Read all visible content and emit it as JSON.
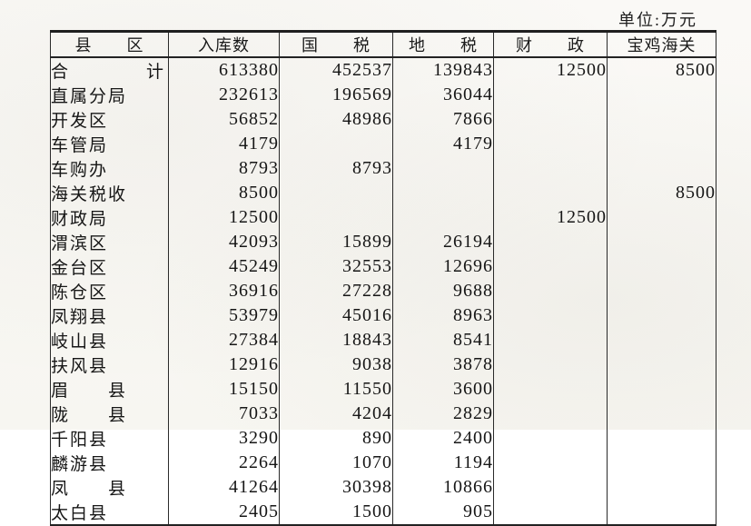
{
  "unit_label": "单位:万元",
  "colors": {
    "paper": "#f9f8f4",
    "ink": "#1b1b1b",
    "rule_line": "#2a2a2a"
  },
  "table": {
    "columns": [
      "县　　区",
      "入库数",
      "国　　税",
      "地　　税",
      "财　　政",
      "宝鸡海关"
    ],
    "rows": [
      [
        "合　　　　计",
        "613380",
        "452537",
        "139843",
        "12500",
        "8500"
      ],
      [
        "直属分局",
        "232613",
        "196569",
        "36044",
        "",
        ""
      ],
      [
        "开发区",
        "56852",
        "48986",
        "7866",
        "",
        ""
      ],
      [
        "车管局",
        "4179",
        "",
        "4179",
        "",
        ""
      ],
      [
        "车购办",
        "8793",
        "8793",
        "",
        "",
        ""
      ],
      [
        "海关税收",
        "8500",
        "",
        "",
        "",
        "8500"
      ],
      [
        "财政局",
        "12500",
        "",
        "",
        "12500",
        ""
      ],
      [
        "渭滨区",
        "42093",
        "15899",
        "26194",
        "",
        ""
      ],
      [
        "金台区",
        "45249",
        "32553",
        "12696",
        "",
        ""
      ],
      [
        "陈仓区",
        "36916",
        "27228",
        "9688",
        "",
        ""
      ],
      [
        "凤翔县",
        "53979",
        "45016",
        "8963",
        "",
        ""
      ],
      [
        "岐山县",
        "27384",
        "18843",
        "8541",
        "",
        ""
      ],
      [
        "扶风县",
        "12916",
        "9038",
        "3878",
        "",
        ""
      ],
      [
        "眉　　县",
        "15150",
        "11550",
        "3600",
        "",
        ""
      ],
      [
        "陇　　县",
        "7033",
        "4204",
        "2829",
        "",
        ""
      ],
      [
        "千阳县",
        "3290",
        "890",
        "2400",
        "",
        ""
      ],
      [
        "麟游县",
        "2264",
        "1070",
        "1194",
        "",
        ""
      ],
      [
        "凤　　县",
        "41264",
        "30398",
        "10866",
        "",
        ""
      ],
      [
        "太白县",
        "2405",
        "1500",
        "905",
        "",
        ""
      ]
    ]
  }
}
